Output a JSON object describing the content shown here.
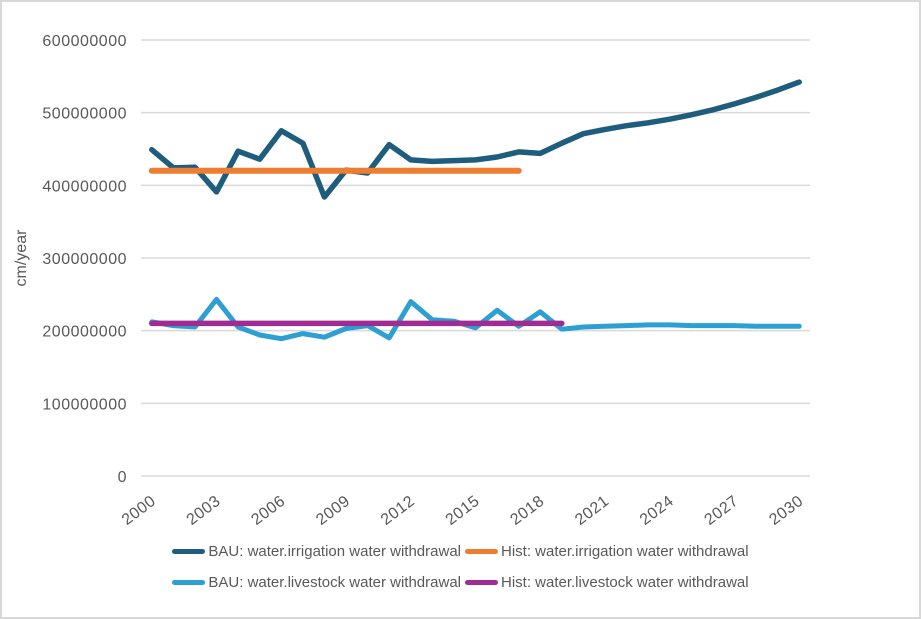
{
  "chart_data": {
    "type": "line",
    "title": "",
    "xlabel": "",
    "ylabel": "cm/year",
    "ylim": [
      0,
      600000000
    ],
    "y_ticks": [
      600000000,
      500000000,
      400000000,
      300000000,
      200000000,
      100000000,
      0
    ],
    "x": [
      2000,
      2001,
      2002,
      2003,
      2004,
      2005,
      2006,
      2007,
      2008,
      2009,
      2010,
      2011,
      2012,
      2013,
      2014,
      2015,
      2016,
      2017,
      2018,
      2019,
      2020,
      2021,
      2022,
      2023,
      2024,
      2025,
      2026,
      2027,
      2028,
      2029,
      2030
    ],
    "x_tick_labels": [
      "2000",
      "2003",
      "2006",
      "2009",
      "2012",
      "2015",
      "2018",
      "2021",
      "2024",
      "2027",
      "2030"
    ],
    "x_tick_interval": 3,
    "grid": "horizontal",
    "legend_position": "bottom",
    "series": [
      {
        "name": "BAU: water.irrigation water withdrawal",
        "color": "#1F5D7F",
        "values": [
          449000000,
          424000000,
          425000000,
          391000000,
          447000000,
          436000000,
          475000000,
          458000000,
          384000000,
          421000000,
          417000000,
          456000000,
          435000000,
          433000000,
          434000000,
          435000000,
          439000000,
          446000000,
          444000000,
          458000000,
          471000000,
          477000000,
          482000000,
          486000000,
          491000000,
          497000000,
          504000000,
          512000000,
          521000000,
          531000000,
          542000000
        ]
      },
      {
        "name": "Hist: water.irrigation water withdrawal",
        "color": "#ED7D31",
        "values": [
          420000000,
          420000000,
          420000000,
          420000000,
          420000000,
          420000000,
          420000000,
          420000000,
          420000000,
          420000000,
          420000000,
          420000000,
          420000000,
          420000000,
          420000000,
          420000000,
          420000000,
          420000000,
          null,
          null,
          null,
          null,
          null,
          null,
          null,
          null,
          null,
          null,
          null,
          null,
          null
        ]
      },
      {
        "name": "BAU: water.livestock water withdrawal",
        "color": "#2E9FD3",
        "values": [
          212000000,
          207000000,
          205000000,
          243000000,
          205000000,
          194000000,
          189000000,
          196000000,
          191000000,
          203000000,
          207000000,
          190000000,
          240000000,
          215000000,
          213000000,
          204000000,
          228000000,
          206000000,
          226000000,
          202000000,
          205000000,
          206000000,
          207000000,
          208000000,
          208000000,
          207000000,
          207000000,
          207000000,
          206000000,
          206000000,
          206000000
        ]
      },
      {
        "name": "Hist: water.livestock water withdrawal",
        "color": "#A02B93",
        "values": [
          210000000,
          210000000,
          210000000,
          210000000,
          210000000,
          210000000,
          210000000,
          210000000,
          210000000,
          210000000,
          210000000,
          210000000,
          210000000,
          210000000,
          210000000,
          210000000,
          210000000,
          210000000,
          210000000,
          210000000,
          null,
          null,
          null,
          null,
          null,
          null,
          null,
          null,
          null,
          null,
          null
        ]
      }
    ]
  }
}
